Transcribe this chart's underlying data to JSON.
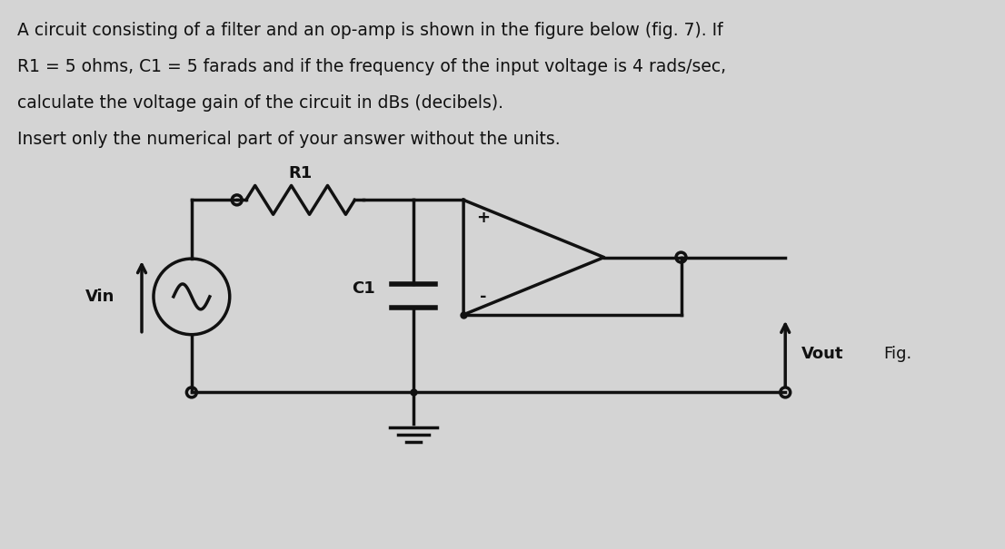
{
  "bg_color": "#d4d4d4",
  "text_color": "#111111",
  "line_color": "#111111",
  "title_lines": [
    "A circuit consisting of a filter and an op-amp is shown in the figure below (fig. 7). If",
    "R1 = 5 ohms, C1 = 5 farads and if the frequency of the input voltage is 4 rads/sec,",
    "calculate the voltage gain of the circuit in dBs (decibels)."
  ],
  "subtitle": "Insert only the numerical part of your answer without the units.",
  "label_R1": "R1",
  "label_C1": "C1",
  "label_Vin": "Vin",
  "label_Vout": "Vout",
  "label_Fig": "Fig.",
  "label_plus": "+",
  "label_minus": "-",
  "font_size_text": 13.5,
  "font_size_labels": 13,
  "font_size_signs": 13,
  "lw": 2.5
}
